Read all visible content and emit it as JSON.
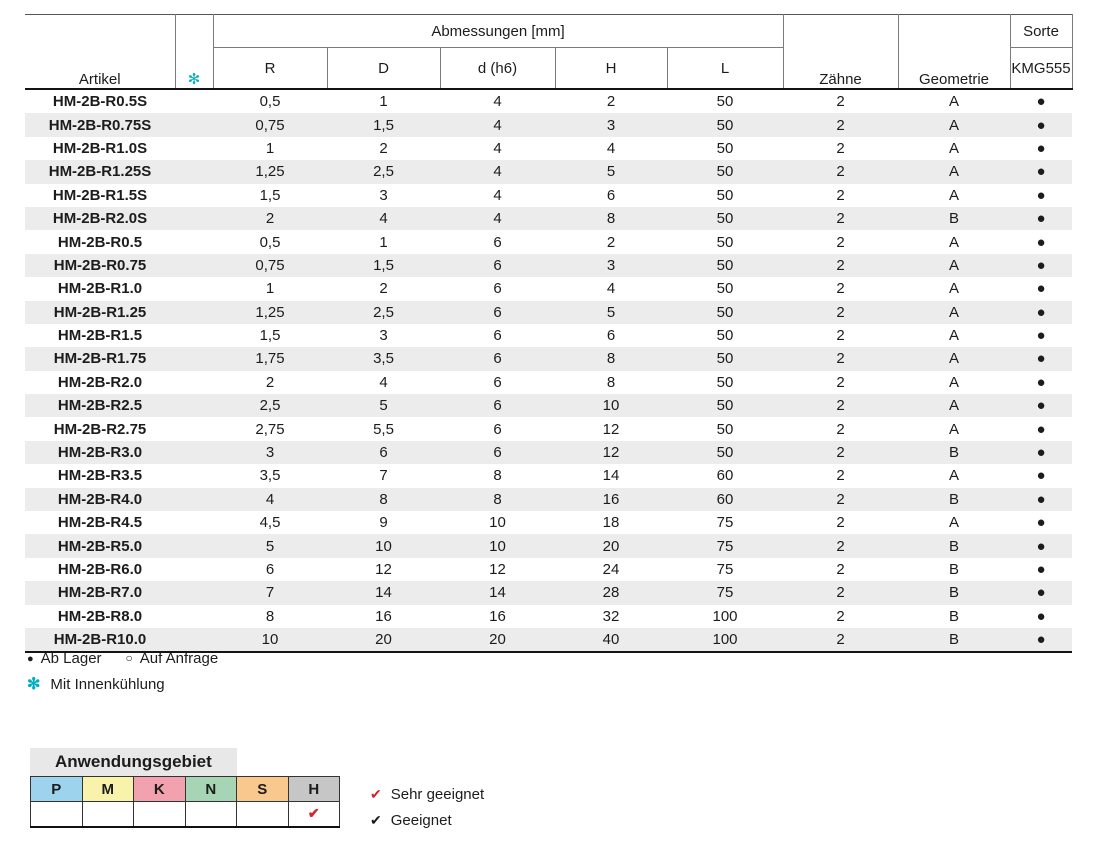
{
  "table": {
    "group_header": "Abmessungen [mm]",
    "col_artikel": "Artikel",
    "coolant_icon_symbol": "✻",
    "subcols": [
      "R",
      "D",
      "d (h6)",
      "H",
      "L"
    ],
    "col_zaehne": "Zähne",
    "col_geometrie": "Geometrie",
    "col_sorte": "Sorte",
    "col_sorte_sub": "KMG555",
    "rows": [
      {
        "artikel": "HM-2B-R0.5S",
        "r": "0,5",
        "d": "1",
        "d_h6": "4",
        "h": "2",
        "l": "50",
        "zaehne": "2",
        "geometrie": "A",
        "sorte": "●"
      },
      {
        "artikel": "HM-2B-R0.75S",
        "r": "0,75",
        "d": "1,5",
        "d_h6": "4",
        "h": "3",
        "l": "50",
        "zaehne": "2",
        "geometrie": "A",
        "sorte": "●"
      },
      {
        "artikel": "HM-2B-R1.0S",
        "r": "1",
        "d": "2",
        "d_h6": "4",
        "h": "4",
        "l": "50",
        "zaehne": "2",
        "geometrie": "A",
        "sorte": "●"
      },
      {
        "artikel": "HM-2B-R1.25S",
        "r": "1,25",
        "d": "2,5",
        "d_h6": "4",
        "h": "5",
        "l": "50",
        "zaehne": "2",
        "geometrie": "A",
        "sorte": "●"
      },
      {
        "artikel": "HM-2B-R1.5S",
        "r": "1,5",
        "d": "3",
        "d_h6": "4",
        "h": "6",
        "l": "50",
        "zaehne": "2",
        "geometrie": "A",
        "sorte": "●"
      },
      {
        "artikel": "HM-2B-R2.0S",
        "r": "2",
        "d": "4",
        "d_h6": "4",
        "h": "8",
        "l": "50",
        "zaehne": "2",
        "geometrie": "B",
        "sorte": "●"
      },
      {
        "artikel": "HM-2B-R0.5",
        "r": "0,5",
        "d": "1",
        "d_h6": "6",
        "h": "2",
        "l": "50",
        "zaehne": "2",
        "geometrie": "A",
        "sorte": "●"
      },
      {
        "artikel": "HM-2B-R0.75",
        "r": "0,75",
        "d": "1,5",
        "d_h6": "6",
        "h": "3",
        "l": "50",
        "zaehne": "2",
        "geometrie": "A",
        "sorte": "●"
      },
      {
        "artikel": "HM-2B-R1.0",
        "r": "1",
        "d": "2",
        "d_h6": "6",
        "h": "4",
        "l": "50",
        "zaehne": "2",
        "geometrie": "A",
        "sorte": "●"
      },
      {
        "artikel": "HM-2B-R1.25",
        "r": "1,25",
        "d": "2,5",
        "d_h6": "6",
        "h": "5",
        "l": "50",
        "zaehne": "2",
        "geometrie": "A",
        "sorte": "●"
      },
      {
        "artikel": "HM-2B-R1.5",
        "r": "1,5",
        "d": "3",
        "d_h6": "6",
        "h": "6",
        "l": "50",
        "zaehne": "2",
        "geometrie": "A",
        "sorte": "●"
      },
      {
        "artikel": "HM-2B-R1.75",
        "r": "1,75",
        "d": "3,5",
        "d_h6": "6",
        "h": "8",
        "l": "50",
        "zaehne": "2",
        "geometrie": "A",
        "sorte": "●"
      },
      {
        "artikel": "HM-2B-R2.0",
        "r": "2",
        "d": "4",
        "d_h6": "6",
        "h": "8",
        "l": "50",
        "zaehne": "2",
        "geometrie": "A",
        "sorte": "●"
      },
      {
        "artikel": "HM-2B-R2.5",
        "r": "2,5",
        "d": "5",
        "d_h6": "6",
        "h": "10",
        "l": "50",
        "zaehne": "2",
        "geometrie": "A",
        "sorte": "●"
      },
      {
        "artikel": "HM-2B-R2.75",
        "r": "2,75",
        "d": "5,5",
        "d_h6": "6",
        "h": "12",
        "l": "50",
        "zaehne": "2",
        "geometrie": "A",
        "sorte": "●"
      },
      {
        "artikel": "HM-2B-R3.0",
        "r": "3",
        "d": "6",
        "d_h6": "6",
        "h": "12",
        "l": "50",
        "zaehne": "2",
        "geometrie": "B",
        "sorte": "●"
      },
      {
        "artikel": "HM-2B-R3.5",
        "r": "3,5",
        "d": "7",
        "d_h6": "8",
        "h": "14",
        "l": "60",
        "zaehne": "2",
        "geometrie": "A",
        "sorte": "●"
      },
      {
        "artikel": "HM-2B-R4.0",
        "r": "4",
        "d": "8",
        "d_h6": "8",
        "h": "16",
        "l": "60",
        "zaehne": "2",
        "geometrie": "B",
        "sorte": "●"
      },
      {
        "artikel": "HM-2B-R4.5",
        "r": "4,5",
        "d": "9",
        "d_h6": "10",
        "h": "18",
        "l": "75",
        "zaehne": "2",
        "geometrie": "A",
        "sorte": "●"
      },
      {
        "artikel": "HM-2B-R5.0",
        "r": "5",
        "d": "10",
        "d_h6": "10",
        "h": "20",
        "l": "75",
        "zaehne": "2",
        "geometrie": "B",
        "sorte": "●"
      },
      {
        "artikel": "HM-2B-R6.0",
        "r": "6",
        "d": "12",
        "d_h6": "12",
        "h": "24",
        "l": "75",
        "zaehne": "2",
        "geometrie": "B",
        "sorte": "●"
      },
      {
        "artikel": "HM-2B-R7.0",
        "r": "7",
        "d": "14",
        "d_h6": "14",
        "h": "28",
        "l": "75",
        "zaehne": "2",
        "geometrie": "B",
        "sorte": "●"
      },
      {
        "artikel": "HM-2B-R8.0",
        "r": "8",
        "d": "16",
        "d_h6": "16",
        "h": "32",
        "l": "100",
        "zaehne": "2",
        "geometrie": "B",
        "sorte": "●"
      },
      {
        "artikel": "HM-2B-R10.0",
        "r": "10",
        "d": "20",
        "d_h6": "20",
        "h": "40",
        "l": "100",
        "zaehne": "2",
        "geometrie": "B",
        "sorte": "●"
      }
    ]
  },
  "legend": {
    "in_stock_symbol": "●",
    "in_stock_label": "Ab Lager",
    "on_request_symbol": "○",
    "on_request_label": "Auf Anfrage",
    "coolant_symbol": "✻",
    "coolant_label": "Mit Innenkühlung"
  },
  "application": {
    "title": "Anwendungsgebiet",
    "columns": [
      {
        "label": "P",
        "color": "#9ed3ee"
      },
      {
        "label": "M",
        "color": "#f9f2ab"
      },
      {
        "label": "K",
        "color": "#f2a2ae"
      },
      {
        "label": "N",
        "color": "#a7d4b4"
      },
      {
        "label": "S",
        "color": "#f8c88e"
      },
      {
        "label": "H",
        "color": "#c6c6c6"
      }
    ],
    "marks": [
      "",
      "",
      "",
      "",
      "",
      "✔"
    ],
    "legend": [
      {
        "symbol": "✔",
        "label": "Sehr geeignet",
        "color": "#d2232a"
      },
      {
        "symbol": "✔",
        "label": "Geeignet",
        "color": "#1a1a1a"
      }
    ]
  },
  "colors": {
    "coolant_icon": "#00aec3",
    "very_suitable_check": "#d2232a",
    "suitable_check": "#1a1a1a",
    "row_alt_background": "#ececec",
    "app_title_background": "#e8e8e8"
  }
}
